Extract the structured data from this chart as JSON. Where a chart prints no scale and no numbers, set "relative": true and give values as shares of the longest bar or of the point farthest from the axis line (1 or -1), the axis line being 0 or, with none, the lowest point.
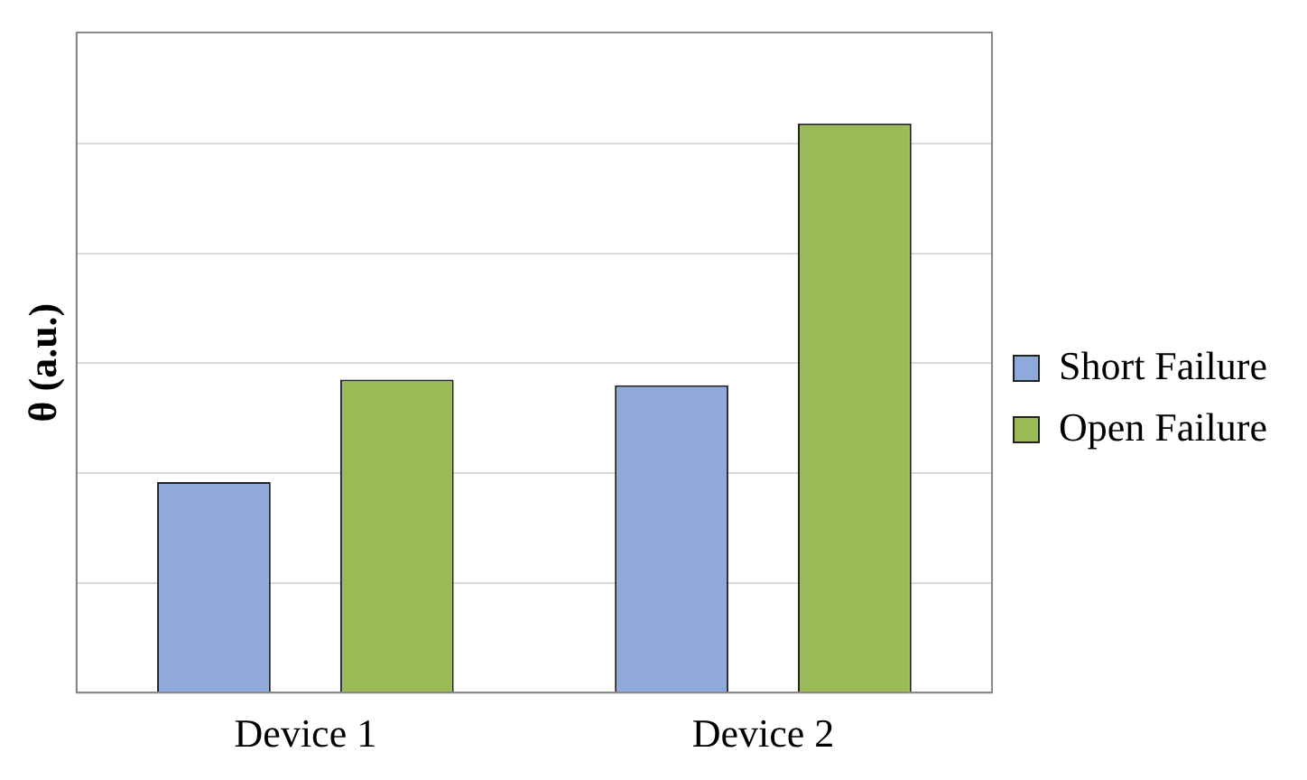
{
  "chart_data": {
    "type": "bar",
    "relative": true,
    "ylabel": "θ (a.u.)",
    "categories": [
      "Device 1",
      "Device 2"
    ],
    "series": [
      {
        "name": "Short Failure",
        "color": "#8fa9dc",
        "values": [
          0.37,
          0.54
        ]
      },
      {
        "name": "Open Failure",
        "color": "#9bbb59",
        "values": [
          0.55,
          1
        ]
      }
    ],
    "grid": "y",
    "legend": "right"
  }
}
